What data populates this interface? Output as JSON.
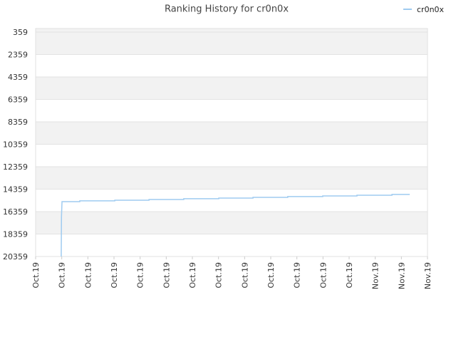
{
  "chart_data": {
    "type": "line",
    "title": "Ranking History for cr0n0x",
    "y_inverted": true,
    "grid": true,
    "legend": "top-right",
    "xlim": [
      0,
      15
    ],
    "xticks": [
      {
        "value": 0,
        "label": "Oct.19"
      },
      {
        "value": 1,
        "label": "Oct.19"
      },
      {
        "value": 2,
        "label": "Oct.19"
      },
      {
        "value": 3,
        "label": "Oct.19"
      },
      {
        "value": 4,
        "label": "Oct.19"
      },
      {
        "value": 5,
        "label": "Oct.19"
      },
      {
        "value": 6,
        "label": "Oct.19"
      },
      {
        "value": 7,
        "label": "Oct.19"
      },
      {
        "value": 8,
        "label": "Oct.19"
      },
      {
        "value": 9,
        "label": "Oct.19"
      },
      {
        "value": 10,
        "label": "Oct.19"
      },
      {
        "value": 11,
        "label": "Oct.19"
      },
      {
        "value": 12,
        "label": "Oct.19"
      },
      {
        "value": 13,
        "label": "Nov.19"
      },
      {
        "value": 14,
        "label": "Nov.19"
      },
      {
        "value": 15,
        "label": "Nov.19"
      }
    ],
    "ylim": [
      20359,
      42
    ],
    "yticks": [
      359,
      2359,
      4359,
      6359,
      8359,
      10359,
      12359,
      14359,
      16359,
      18359,
      20359
    ],
    "x": [
      0.98,
      0.99,
      1.01,
      1.69,
      1.69,
      3.03,
      3.03,
      4.34,
      4.34,
      5.67,
      5.67,
      7.01,
      7.01,
      8.32,
      8.32,
      9.65,
      9.65,
      10.99,
      10.99,
      12.3,
      12.3,
      13.64,
      13.64,
      14.32
    ],
    "series": [
      {
        "name": "cr0n0x",
        "color": "#9fcbf0",
        "values": [
          20359,
          16800,
          15470,
          15470,
          15400,
          15400,
          15340,
          15340,
          15280,
          15280,
          15210,
          15210,
          15150,
          15150,
          15090,
          15090,
          15020,
          15020,
          14960,
          14960,
          14900,
          14900,
          14830,
          14830
        ]
      }
    ]
  }
}
